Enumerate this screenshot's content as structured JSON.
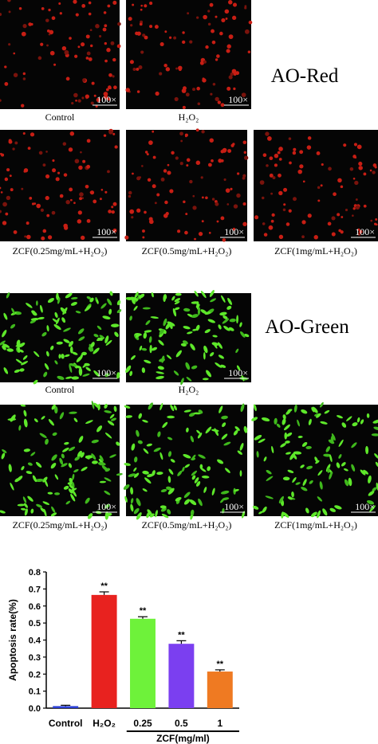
{
  "sections": [
    {
      "title": "AO-Red",
      "panels": [
        {
          "label": "Control",
          "scale": "100×"
        },
        {
          "label": "H₂O₂",
          "scale": "100×"
        },
        {
          "label": "ZCF(0.25mg/mL+H₂O₂)",
          "scale": "100×"
        },
        {
          "label": "ZCF(0.5mg/mL+H₂O₂)",
          "scale": "100×"
        },
        {
          "label": "ZCF(1mg/mL+H₂O₂)",
          "scale": "100×"
        }
      ]
    },
    {
      "title": "AO-Green",
      "panels": [
        {
          "label": "Control",
          "scale": "100×"
        },
        {
          "label": "H₂O₂",
          "scale": "100×"
        },
        {
          "label": "ZCF(0.25mg/mL+H₂O₂)",
          "scale": "100×"
        },
        {
          "label": "ZCF(0.5mg/mL+H₂O₂)",
          "scale": "100×"
        },
        {
          "label": "ZCF(1mg/mL+H₂O₂)",
          "scale": "100×"
        }
      ]
    }
  ],
  "chart_data": {
    "type": "bar",
    "ylabel": "Apoptosis rate(%)",
    "xlabel": "ZCF(mg/ml)",
    "categories": [
      "Control",
      "H₂O₂",
      "0.25",
      "0.5",
      "1"
    ],
    "values": [
      0.012,
      0.665,
      0.525,
      0.378,
      0.215
    ],
    "errors": [
      0.005,
      0.018,
      0.012,
      0.018,
      0.01
    ],
    "significance": [
      null,
      "**",
      "**",
      "**",
      "**"
    ],
    "colors": [
      "#2b3fd6",
      "#e8221f",
      "#6ef23a",
      "#7b3ff0",
      "#ef7a22"
    ],
    "ylim": [
      0,
      0.8
    ],
    "yticks": [
      {
        "value": 0,
        "label": "0.0"
      },
      0.1,
      0.2,
      0.3,
      0.4,
      0.5,
      0.6,
      0.7,
      0.8
    ]
  }
}
